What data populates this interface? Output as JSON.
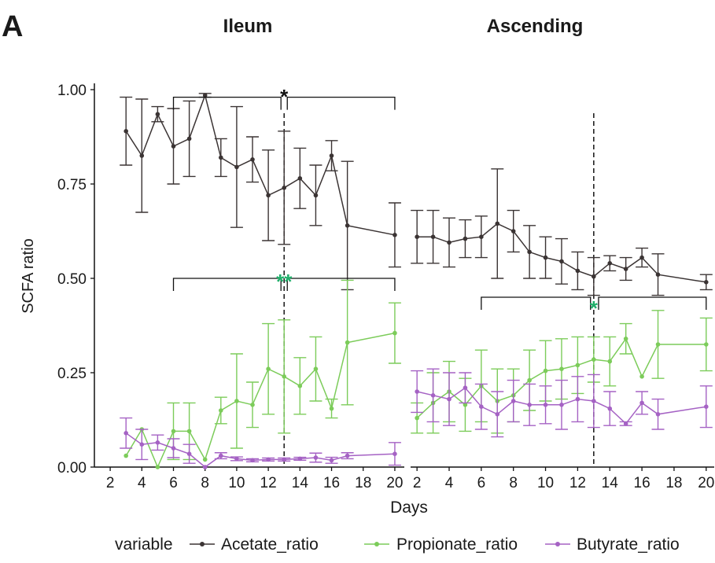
{
  "panel_label": "A",
  "colors": {
    "acetate": "#3b3434",
    "propionate": "#7ccc5a",
    "butyrate": "#a562c4",
    "sig_green": "#1fae6a",
    "sig_black": "#111111"
  },
  "chart_data": {
    "type": "line",
    "ylabel": "SCFA ratio",
    "xlabel": "Days",
    "ylim": [
      0,
      1
    ],
    "yticks": [
      "0.00",
      "0.25",
      "0.50",
      "0.75",
      "1.00"
    ],
    "legend": {
      "title": "variable",
      "position": "bottom",
      "entries": [
        "Acetate_ratio",
        "Propionate_ratio",
        "Butyrate_ratio"
      ]
    },
    "panels": [
      {
        "title": "Ileum",
        "xlim": [
          1,
          20.6
        ],
        "xticks": [
          2,
          4,
          6,
          8,
          10,
          12,
          14,
          16,
          18,
          20
        ],
        "vline": 13,
        "series": [
          {
            "name": "Acetate_ratio",
            "x": [
              3,
              4,
              5,
              6,
              7,
              8,
              9,
              10,
              11,
              12,
              13,
              14,
              15,
              16,
              17,
              20
            ],
            "y": [
              0.89,
              0.825,
              0.935,
              0.85,
              0.87,
              0.985,
              0.82,
              0.795,
              0.815,
              0.72,
              0.74,
              0.765,
              0.72,
              0.825,
              0.64,
              0.615
            ],
            "err": [
              0.09,
              0.15,
              0.02,
              0.1,
              0.1,
              0.005,
              0.05,
              0.16,
              0.06,
              0.12,
              0.15,
              0.08,
              0.08,
              0.04,
              0.17,
              0.085
            ]
          },
          {
            "name": "Propionate_ratio",
            "x": [
              3,
              4,
              5,
              6,
              7,
              8,
              9,
              10,
              11,
              12,
              13,
              14,
              15,
              16,
              17,
              20
            ],
            "y": [
              0.03,
              0.1,
              0.0,
              0.095,
              0.095,
              0.02,
              0.15,
              0.175,
              0.165,
              0.26,
              0.24,
              0.215,
              0.26,
              0.155,
              0.33,
              0.355
            ],
            "err": [
              0.0,
              0.0,
              0.0,
              0.075,
              0.075,
              0.0,
              0.035,
              0.125,
              0.06,
              0.12,
              0.15,
              0.075,
              0.085,
              0.025,
              0.165,
              0.08
            ]
          },
          {
            "name": "Butyrate_ratio",
            "x": [
              3,
              4,
              5,
              6,
              7,
              8,
              9,
              10,
              11,
              12,
              13,
              14,
              15,
              16,
              17,
              20
            ],
            "y": [
              0.09,
              0.06,
              0.065,
              0.05,
              0.035,
              0.0,
              0.03,
              0.022,
              0.018,
              0.02,
              0.02,
              0.022,
              0.025,
              0.018,
              0.03,
              0.035
            ],
            "err": [
              0.04,
              0.04,
              0.02,
              0.025,
              0.025,
              0.0,
              0.008,
              0.005,
              0.004,
              0.004,
              0.004,
              0.004,
              0.012,
              0.008,
              0.008,
              0.03
            ]
          }
        ],
        "annotations": [
          {
            "text": "*",
            "color": "black",
            "x1": 6,
            "x2": 12.8,
            "x3": 13.2,
            "x4": 20,
            "y": 0.98,
            "star_y": 1.0
          },
          {
            "text": "**",
            "color": "green",
            "x1": 6,
            "x2": 12.8,
            "x3": 13.2,
            "x4": 20,
            "y": 0.5,
            "star_y": 0.51
          }
        ]
      },
      {
        "title": "Ascending",
        "xlim": [
          1.6,
          20.5
        ],
        "xticks": [
          2,
          4,
          6,
          8,
          10,
          12,
          14,
          16,
          18,
          20
        ],
        "vline": 13,
        "series": [
          {
            "name": "Acetate_ratio",
            "x": [
              2,
              3,
              4,
              5,
              6,
              7,
              8,
              9,
              10,
              11,
              12,
              13,
              14,
              15,
              16,
              17,
              20
            ],
            "y": [
              0.61,
              0.61,
              0.595,
              0.605,
              0.61,
              0.645,
              0.625,
              0.57,
              0.555,
              0.545,
              0.52,
              0.505,
              0.54,
              0.525,
              0.555,
              0.51,
              0.49
            ],
            "err": [
              0.07,
              0.07,
              0.065,
              0.05,
              0.055,
              0.145,
              0.055,
              0.07,
              0.055,
              0.06,
              0.05,
              0.05,
              0.02,
              0.03,
              0.025,
              0.055,
              0.02
            ]
          },
          {
            "name": "Propionate_ratio",
            "x": [
              2,
              3,
              4,
              5,
              6,
              7,
              8,
              9,
              10,
              11,
              12,
              13,
              14,
              15,
              16,
              17,
              20
            ],
            "y": [
              0.13,
              0.17,
              0.2,
              0.165,
              0.215,
              0.175,
              0.19,
              0.23,
              0.255,
              0.26,
              0.27,
              0.285,
              0.28,
              0.34,
              0.24,
              0.325,
              0.325
            ],
            "err": [
              0.04,
              0.08,
              0.08,
              0.07,
              0.095,
              0.085,
              0.07,
              0.08,
              0.08,
              0.08,
              0.075,
              0.06,
              0.065,
              0.04,
              0.0,
              0.09,
              0.07
            ]
          },
          {
            "name": "Butyrate_ratio",
            "x": [
              2,
              3,
              4,
              5,
              6,
              7,
              8,
              9,
              10,
              11,
              12,
              13,
              14,
              15,
              16,
              17,
              20
            ],
            "y": [
              0.2,
              0.19,
              0.18,
              0.21,
              0.16,
              0.14,
              0.175,
              0.165,
              0.165,
              0.165,
              0.18,
              0.175,
              0.155,
              0.115,
              0.17,
              0.14,
              0.16
            ],
            "err": [
              0.055,
              0.07,
              0.07,
              0.04,
              0.06,
              0.06,
              0.055,
              0.055,
              0.05,
              0.065,
              0.06,
              0.07,
              0.045,
              0.005,
              0.03,
              0.04,
              0.055
            ]
          }
        ],
        "annotations": [
          {
            "text": "*",
            "color": "green",
            "x1": 6,
            "x2": 12.8,
            "x3": 13.3,
            "x4": 20,
            "y": 0.45,
            "star_y": 0.44
          }
        ]
      }
    ]
  }
}
